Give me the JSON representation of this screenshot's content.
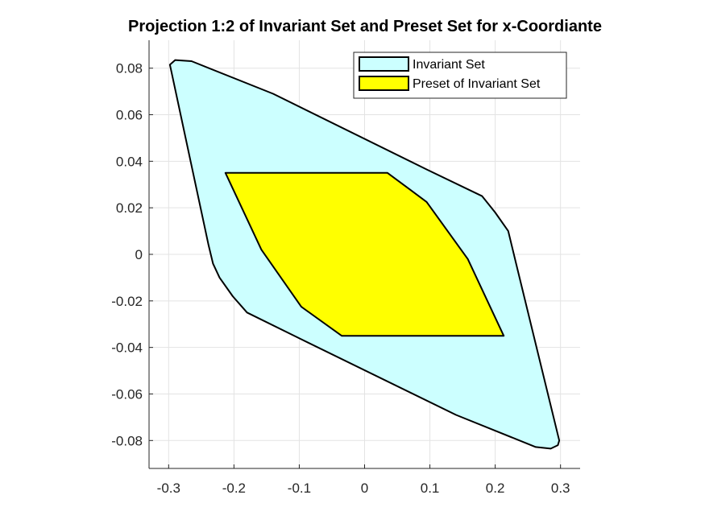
{
  "chart_data": {
    "type": "area",
    "title": "Projection 1:2 of Invariant Set and Preset Set for x-Coordiante",
    "xlabel": "",
    "ylabel": "",
    "xlim": [
      -0.33,
      0.33
    ],
    "ylim": [
      -0.092,
      0.092
    ],
    "grid": true,
    "legend_position": "top-right",
    "x_ticks": [
      -0.3,
      -0.2,
      -0.1,
      0,
      0.1,
      0.2,
      0.3
    ],
    "x_tick_labels": [
      "-0.3",
      "-0.2",
      "-0.1",
      "0",
      "0.1",
      "0.2",
      "0.3"
    ],
    "y_ticks": [
      0.08,
      0.06,
      0.04,
      0.02,
      0,
      -0.02,
      -0.04,
      -0.06,
      -0.08
    ],
    "y_tick_labels": [
      "0.08",
      "0.06",
      "0.04",
      "0.02",
      "0",
      "-0.02",
      "-0.04",
      "-0.06",
      "-0.08"
    ],
    "series": [
      {
        "name": "Invariant Set",
        "color": "#ccffff",
        "points": [
          [
            -0.298,
            0.0815
          ],
          [
            -0.29,
            0.0835
          ],
          [
            -0.265,
            0.083
          ],
          [
            -0.14,
            0.069
          ],
          [
            0.095,
            0.0365
          ],
          [
            0.18,
            0.025
          ],
          [
            0.2,
            0.018
          ],
          [
            0.22,
            0.01
          ],
          [
            0.232,
            -0.004
          ],
          [
            0.298,
            -0.08
          ],
          [
            0.296,
            -0.082
          ],
          [
            0.285,
            -0.0835
          ],
          [
            0.262,
            -0.0828
          ],
          [
            0.14,
            -0.069
          ],
          [
            -0.097,
            -0.0365
          ],
          [
            -0.18,
            -0.025
          ],
          [
            -0.202,
            -0.018
          ],
          [
            -0.222,
            -0.01
          ],
          [
            -0.232,
            -0.004
          ],
          [
            -0.239,
            0.004
          ]
        ]
      },
      {
        "name": "Preset of Invariant Set",
        "color": "#ffff00",
        "points": [
          [
            -0.213,
            0.035
          ],
          [
            0.035,
            0.035
          ],
          [
            0.095,
            0.0225
          ],
          [
            0.158,
            -0.002
          ],
          [
            0.213,
            -0.035
          ],
          [
            -0.035,
            -0.035
          ],
          [
            -0.097,
            -0.0225
          ],
          [
            -0.158,
            0.002
          ]
        ]
      }
    ]
  }
}
